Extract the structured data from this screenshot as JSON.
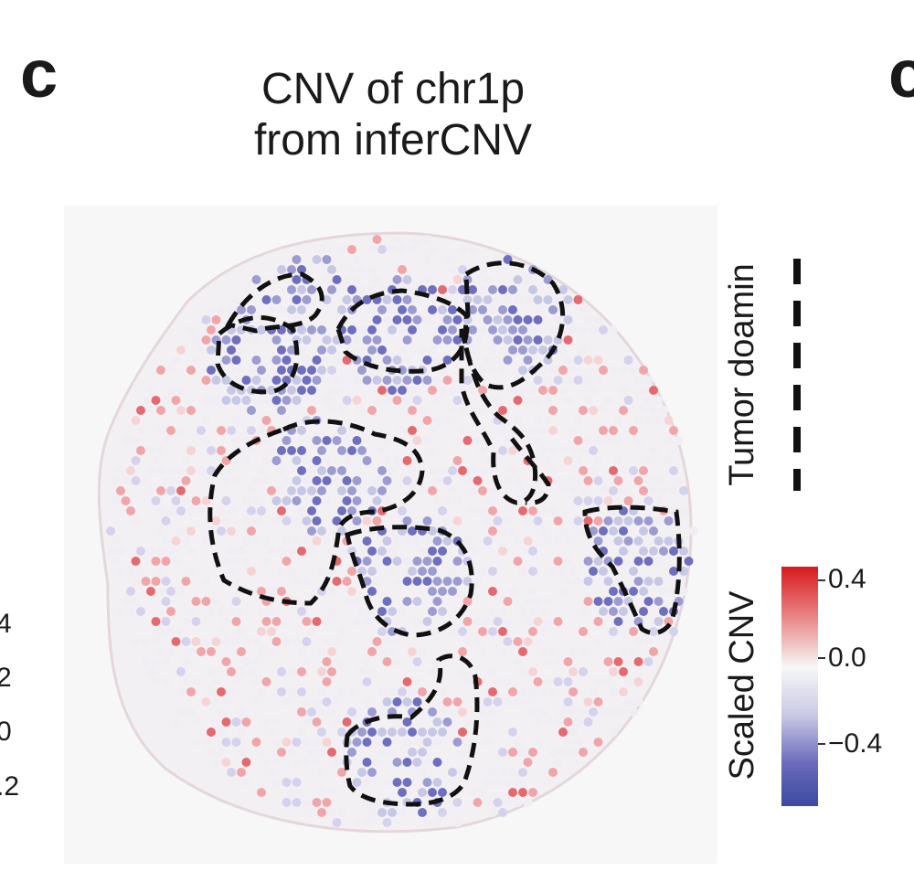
{
  "panel": {
    "letter": "c",
    "next_letter_partial": "c"
  },
  "title": {
    "line1": "CNV of chr1p",
    "line2": "from inferCNV"
  },
  "left_partial_ticks": [
    "4",
    "2",
    "0",
    ".2"
  ],
  "legend": {
    "tumor_label": "Tumor doamin",
    "colorbar_title": "Scaled CNV",
    "colorbar_ticks": [
      "0.4",
      "0.0",
      "−0.4"
    ]
  },
  "colors": {
    "high": "#d7191c",
    "mid": "#f7f7f7",
    "low": "#3a4aa0",
    "outline": "#111111"
  }
}
